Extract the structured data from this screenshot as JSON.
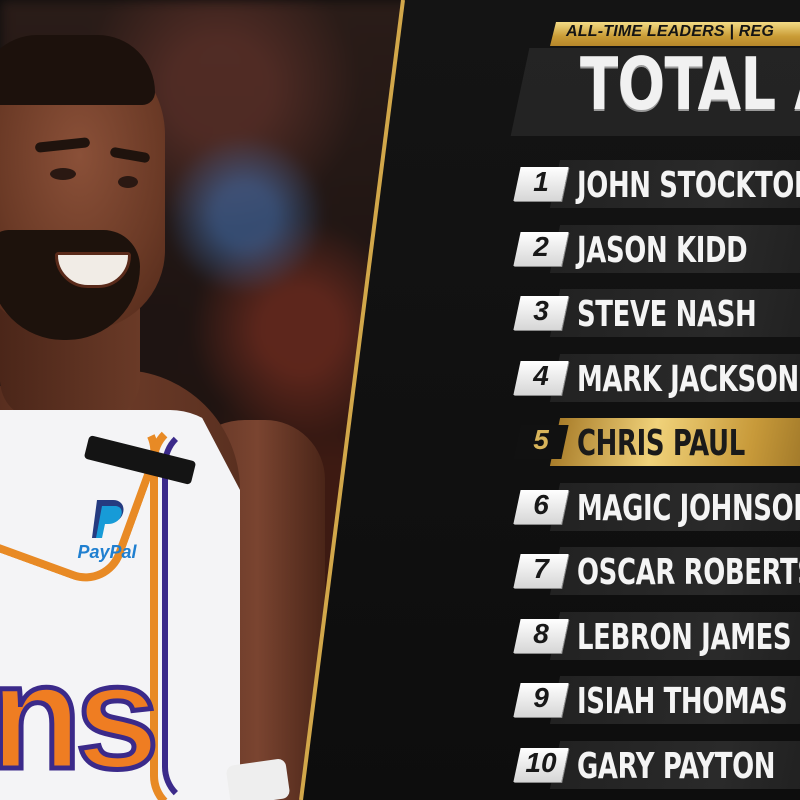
{
  "header": {
    "tagline": "ALL-TIME LEADERS | REG",
    "title": "TOTAL ASS"
  },
  "sponsor": {
    "logo_letter": "P",
    "text": "PayPal"
  },
  "jersey": {
    "letters": "ns"
  },
  "leaders": [
    {
      "rank": "1",
      "name": "JOHN STOCKTON"
    },
    {
      "rank": "2",
      "name": "JASON KIDD"
    },
    {
      "rank": "3",
      "name": "STEVE NASH"
    },
    {
      "rank": "4",
      "name": "MARK JACKSON"
    },
    {
      "rank": "5",
      "name": "CHRIS PAUL",
      "highlighted": true
    },
    {
      "rank": "6",
      "name": "MAGIC JOHNSON"
    },
    {
      "rank": "7",
      "name": "OSCAR ROBERTSON"
    },
    {
      "rank": "8",
      "name": "LEBRON JAMES"
    },
    {
      "rank": "9",
      "name": "ISIAH THOMAS"
    },
    {
      "rank": "10",
      "name": "GARY PAYTON"
    }
  ],
  "colors": {
    "gold": "#d2a74a",
    "panel": "#111111",
    "jersey_orange": "#ef7d22",
    "jersey_purple": "#3b2a8a"
  }
}
